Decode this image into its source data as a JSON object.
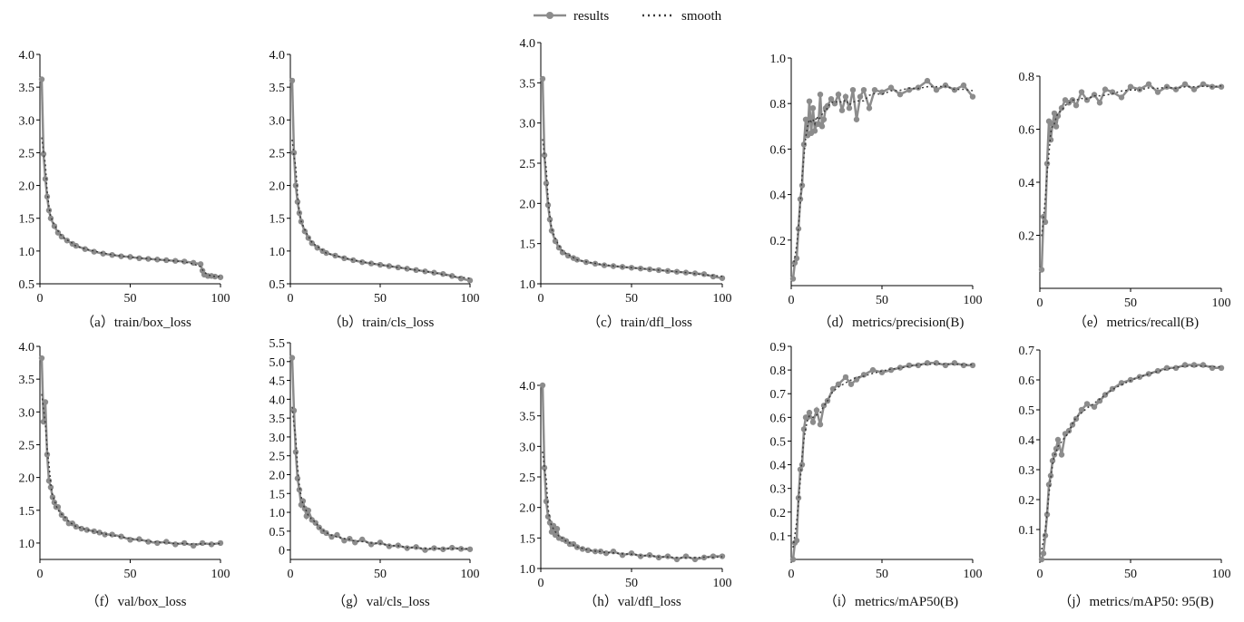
{
  "legend": {
    "results_label": "results",
    "smooth_label": "smooth",
    "results_color": "#8c8c8c",
    "smooth_color": "#3a3a3a"
  },
  "chart_data": [
    {
      "type": "line",
      "caption": "（a）train/box_loss",
      "xlim": [
        0,
        100
      ],
      "ylim": [
        0.5,
        4.0
      ],
      "xticks": [
        0,
        50,
        100
      ],
      "yticks": [
        0.5,
        1.0,
        1.5,
        2.0,
        2.5,
        3.0,
        3.5,
        4.0
      ],
      "ytick_labels": [
        "0.5",
        "1.0",
        "1.5",
        "2.0",
        "2.5",
        "3.0",
        "3.5",
        "4.0"
      ],
      "series": [
        {
          "x": [
            1,
            2,
            3,
            4,
            5,
            6,
            8,
            10,
            12,
            15,
            18,
            20,
            25,
            30,
            35,
            40,
            45,
            50,
            55,
            60,
            65,
            70,
            75,
            80,
            85,
            89,
            90,
            91,
            93,
            95,
            97,
            100
          ],
          "y": [
            3.62,
            2.48,
            2.1,
            1.83,
            1.62,
            1.5,
            1.38,
            1.28,
            1.22,
            1.16,
            1.11,
            1.08,
            1.03,
            0.99,
            0.96,
            0.94,
            0.92,
            0.91,
            0.89,
            0.88,
            0.87,
            0.86,
            0.85,
            0.84,
            0.82,
            0.8,
            0.7,
            0.64,
            0.62,
            0.62,
            0.61,
            0.6
          ]
        }
      ],
      "grid": false
    },
    {
      "type": "line",
      "caption": "（b）train/cls_loss",
      "xlim": [
        0,
        100
      ],
      "ylim": [
        0.5,
        4.0
      ],
      "xticks": [
        0,
        50,
        100
      ],
      "yticks": [
        0.5,
        1.0,
        1.5,
        2.0,
        2.5,
        3.0,
        3.5,
        4.0
      ],
      "ytick_labels": [
        "0.5",
        "1.0",
        "1.5",
        "2.0",
        "2.5",
        "3.0",
        "3.5",
        "4.0"
      ],
      "series": [
        {
          "x": [
            1,
            2,
            3,
            4,
            5,
            6,
            8,
            10,
            12,
            15,
            18,
            20,
            25,
            30,
            35,
            40,
            45,
            50,
            55,
            60,
            65,
            70,
            75,
            80,
            85,
            90,
            95,
            100
          ],
          "y": [
            3.6,
            2.5,
            2.0,
            1.75,
            1.58,
            1.45,
            1.3,
            1.2,
            1.12,
            1.05,
            1.0,
            0.97,
            0.93,
            0.89,
            0.86,
            0.83,
            0.81,
            0.79,
            0.77,
            0.75,
            0.73,
            0.71,
            0.69,
            0.67,
            0.65,
            0.62,
            0.58,
            0.55
          ]
        }
      ],
      "grid": false
    },
    {
      "type": "line",
      "caption": "（c）train/dfl_loss",
      "xlim": [
        0,
        100
      ],
      "ylim": [
        1.0,
        4.0
      ],
      "xticks": [
        0,
        50,
        100
      ],
      "yticks": [
        1.0,
        1.5,
        2.0,
        2.5,
        3.0,
        3.5,
        4.0
      ],
      "ytick_labels": [
        "1.0",
        "1.5",
        "2.0",
        "2.5",
        "3.0",
        "3.5",
        "4.0"
      ],
      "series": [
        {
          "x": [
            1,
            2,
            3,
            4,
            5,
            6,
            8,
            10,
            12,
            15,
            18,
            20,
            25,
            30,
            35,
            40,
            45,
            50,
            55,
            60,
            65,
            70,
            75,
            80,
            85,
            90,
            95,
            100
          ],
          "y": [
            3.55,
            2.6,
            2.25,
            1.98,
            1.8,
            1.66,
            1.53,
            1.45,
            1.39,
            1.35,
            1.32,
            1.3,
            1.27,
            1.25,
            1.23,
            1.22,
            1.21,
            1.2,
            1.19,
            1.18,
            1.17,
            1.16,
            1.15,
            1.14,
            1.13,
            1.12,
            1.09,
            1.07
          ]
        }
      ],
      "grid": false
    },
    {
      "type": "line",
      "caption": "（d）metrics/precision(B)",
      "xlim": [
        0,
        100
      ],
      "ylim": [
        0.0,
        1.0
      ],
      "xticks": [
        0,
        50,
        100
      ],
      "yticks": [
        0.2,
        0.4,
        0.6,
        0.8,
        1.0
      ],
      "ytick_labels": [
        "0.2",
        "0.4",
        "0.6",
        "0.8",
        "1.0"
      ],
      "series": [
        {
          "x": [
            1,
            2,
            3,
            4,
            5,
            6,
            7,
            8,
            9,
            10,
            11,
            12,
            13,
            14,
            15,
            16,
            17,
            18,
            19,
            20,
            22,
            24,
            26,
            28,
            30,
            32,
            34,
            36,
            38,
            40,
            43,
            46,
            50,
            55,
            60,
            65,
            70,
            75,
            80,
            85,
            90,
            95,
            100
          ],
          "y": [
            0.03,
            0.1,
            0.12,
            0.25,
            0.38,
            0.44,
            0.62,
            0.73,
            0.66,
            0.81,
            0.67,
            0.78,
            0.68,
            0.71,
            0.71,
            0.84,
            0.7,
            0.73,
            0.78,
            0.79,
            0.82,
            0.8,
            0.84,
            0.77,
            0.83,
            0.78,
            0.86,
            0.73,
            0.83,
            0.86,
            0.78,
            0.86,
            0.85,
            0.87,
            0.84,
            0.86,
            0.87,
            0.9,
            0.86,
            0.88,
            0.86,
            0.88,
            0.83
          ]
        }
      ],
      "grid": false
    },
    {
      "type": "line",
      "caption": "（e）metrics/recall(B)",
      "xlim": [
        0,
        100
      ],
      "ylim": [
        0.0,
        0.8
      ],
      "xticks": [
        0,
        50,
        100
      ],
      "yticks": [
        0.2,
        0.4,
        0.6,
        0.8
      ],
      "ytick_labels": [
        "0.2",
        "0.4",
        "0.6",
        "0.8"
      ],
      "series": [
        {
          "x": [
            1,
            2,
            3,
            4,
            5,
            6,
            7,
            8,
            9,
            10,
            12,
            14,
            16,
            18,
            20,
            23,
            26,
            30,
            33,
            36,
            40,
            45,
            50,
            55,
            60,
            65,
            70,
            75,
            80,
            85,
            90,
            95,
            100
          ],
          "y": [
            0.07,
            0.27,
            0.25,
            0.47,
            0.63,
            0.56,
            0.62,
            0.66,
            0.61,
            0.65,
            0.68,
            0.71,
            0.7,
            0.71,
            0.69,
            0.74,
            0.71,
            0.73,
            0.7,
            0.75,
            0.74,
            0.72,
            0.76,
            0.75,
            0.77,
            0.74,
            0.76,
            0.75,
            0.77,
            0.75,
            0.77,
            0.76,
            0.76
          ]
        }
      ],
      "grid": false
    },
    {
      "type": "line",
      "caption": "（f）val/box_loss",
      "xlim": [
        0,
        100
      ],
      "ylim": [
        0.75,
        4.0
      ],
      "xticks": [
        0,
        50,
        100
      ],
      "yticks": [
        1.0,
        1.5,
        2.0,
        2.5,
        3.0,
        3.5,
        4.0
      ],
      "ytick_labels": [
        "1.0",
        "1.5",
        "2.0",
        "2.5",
        "3.0",
        "3.5",
        "4.0"
      ],
      "series": [
        {
          "x": [
            1,
            2,
            3,
            4,
            5,
            6,
            7,
            8,
            9,
            10,
            12,
            14,
            16,
            18,
            20,
            23,
            26,
            30,
            33,
            36,
            40,
            45,
            50,
            55,
            60,
            65,
            70,
            75,
            80,
            85,
            90,
            95,
            100
          ],
          "y": [
            3.82,
            2.85,
            3.15,
            2.35,
            1.95,
            1.85,
            1.7,
            1.62,
            1.55,
            1.55,
            1.43,
            1.37,
            1.3,
            1.3,
            1.25,
            1.22,
            1.2,
            1.18,
            1.16,
            1.13,
            1.13,
            1.1,
            1.05,
            1.06,
            1.02,
            1.0,
            1.02,
            0.98,
            1.0,
            0.96,
            1.0,
            0.98,
            1.0
          ]
        }
      ],
      "grid": false
    },
    {
      "type": "line",
      "caption": "（g）val/cls_loss",
      "xlim": [
        0,
        100
      ],
      "ylim": [
        -0.25,
        5.5
      ],
      "xticks": [
        0,
        50,
        100
      ],
      "yticks": [
        0,
        0.5,
        1.0,
        1.5,
        2.0,
        2.5,
        3.0,
        3.5,
        4.0,
        4.5,
        5.0,
        5.5
      ],
      "ytick_labels": [
        "0",
        "0.5",
        "1.0",
        "1.5",
        "2.0",
        "2.5",
        "3.0",
        "3.5",
        "4.0",
        "4.5",
        "5.0",
        "5.5"
      ],
      "series": [
        {
          "x": [
            1,
            2,
            3,
            4,
            5,
            6,
            7,
            8,
            9,
            10,
            12,
            14,
            16,
            18,
            20,
            23,
            26,
            30,
            33,
            36,
            40,
            45,
            50,
            55,
            60,
            65,
            70,
            75,
            80,
            85,
            90,
            95,
            100
          ],
          "y": [
            5.1,
            3.7,
            2.6,
            1.9,
            1.6,
            1.2,
            1.3,
            1.1,
            0.9,
            1.05,
            0.8,
            0.72,
            0.6,
            0.5,
            0.45,
            0.35,
            0.4,
            0.25,
            0.3,
            0.2,
            0.28,
            0.15,
            0.2,
            0.1,
            0.12,
            0.05,
            0.08,
            0.0,
            0.05,
            0.02,
            0.06,
            0.03,
            0.02
          ]
        }
      ],
      "grid": false
    },
    {
      "type": "line",
      "caption": "（h）val/dfl_loss",
      "xlim": [
        0,
        100
      ],
      "ylim": [
        1.0,
        4.0
      ],
      "xticks": [
        0,
        50,
        100
      ],
      "yticks": [
        1.0,
        1.5,
        2.0,
        2.5,
        3.0,
        3.5,
        4.0
      ],
      "ytick_labels": [
        "1.0",
        "1.5",
        "2.0",
        "2.5",
        "3.0",
        "3.5",
        "4.0"
      ],
      "series": [
        {
          "x": [
            1,
            2,
            3,
            4,
            5,
            6,
            7,
            8,
            9,
            10,
            12,
            14,
            16,
            18,
            20,
            23,
            26,
            30,
            33,
            36,
            40,
            45,
            50,
            55,
            60,
            65,
            70,
            75,
            80,
            85,
            90,
            95,
            100
          ],
          "y": [
            4.0,
            2.65,
            2.1,
            1.85,
            1.75,
            1.6,
            1.7,
            1.55,
            1.65,
            1.5,
            1.48,
            1.45,
            1.4,
            1.4,
            1.35,
            1.32,
            1.3,
            1.28,
            1.28,
            1.25,
            1.28,
            1.22,
            1.25,
            1.2,
            1.22,
            1.18,
            1.2,
            1.15,
            1.2,
            1.15,
            1.18,
            1.2,
            1.2
          ]
        }
      ],
      "grid": false
    },
    {
      "type": "line",
      "caption": "（i）metrics/mAP50(B)",
      "xlim": [
        0,
        100
      ],
      "ylim": [
        0.0,
        0.9
      ],
      "xticks": [
        0,
        50,
        100
      ],
      "yticks": [
        0.1,
        0.2,
        0.3,
        0.4,
        0.5,
        0.6,
        0.7,
        0.8,
        0.9
      ],
      "ytick_labels": [
        "0.1",
        "0.2",
        "0.3",
        "0.4",
        "0.5",
        "0.6",
        "0.7",
        "0.8",
        "0.9"
      ],
      "series": [
        {
          "x": [
            1,
            2,
            3,
            4,
            5,
            6,
            7,
            8,
            9,
            10,
            12,
            14,
            16,
            18,
            20,
            23,
            26,
            30,
            33,
            36,
            40,
            45,
            50,
            55,
            60,
            65,
            70,
            75,
            80,
            85,
            90,
            95,
            100
          ],
          "y": [
            0.0,
            0.07,
            0.08,
            0.26,
            0.38,
            0.4,
            0.55,
            0.6,
            0.6,
            0.62,
            0.58,
            0.63,
            0.57,
            0.65,
            0.67,
            0.72,
            0.74,
            0.77,
            0.74,
            0.76,
            0.78,
            0.8,
            0.79,
            0.8,
            0.81,
            0.82,
            0.82,
            0.83,
            0.83,
            0.82,
            0.83,
            0.82,
            0.82
          ]
        }
      ],
      "grid": false
    },
    {
      "type": "line",
      "caption": "（j）metrics/mAP50: 95(B)",
      "xlim": [
        0,
        100
      ],
      "ylim": [
        0.0,
        0.7
      ],
      "xticks": [
        0,
        50,
        100
      ],
      "yticks": [
        0.1,
        0.2,
        0.3,
        0.4,
        0.5,
        0.6,
        0.7
      ],
      "ytick_labels": [
        "0.1",
        "0.2",
        "0.3",
        "0.4",
        "0.5",
        "0.6",
        "0.7"
      ],
      "series": [
        {
          "x": [
            1,
            2,
            3,
            4,
            5,
            6,
            7,
            8,
            9,
            10,
            12,
            14,
            16,
            18,
            20,
            23,
            26,
            30,
            33,
            36,
            40,
            45,
            50,
            55,
            60,
            65,
            70,
            75,
            80,
            85,
            90,
            95,
            100
          ],
          "y": [
            0.0,
            0.02,
            0.08,
            0.15,
            0.25,
            0.28,
            0.33,
            0.35,
            0.37,
            0.4,
            0.35,
            0.42,
            0.43,
            0.45,
            0.47,
            0.5,
            0.52,
            0.51,
            0.53,
            0.55,
            0.57,
            0.59,
            0.6,
            0.61,
            0.62,
            0.63,
            0.64,
            0.64,
            0.65,
            0.65,
            0.65,
            0.64,
            0.64
          ]
        }
      ],
      "grid": false
    }
  ]
}
